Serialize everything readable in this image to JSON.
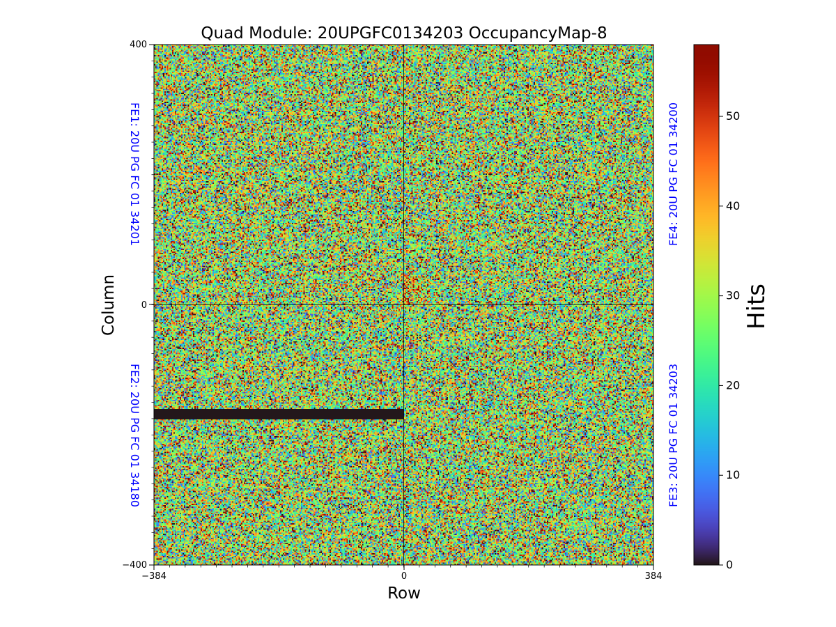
{
  "chart_data": {
    "type": "heatmap",
    "title": "Quad Module: 20UPGFC0134203 OccupancyMap-8",
    "xlabel": "Row",
    "ylabel": "Column",
    "xlim": [
      -384,
      384
    ],
    "ylim": [
      -400,
      400
    ],
    "x_ticks": [
      "−384",
      "0",
      "384"
    ],
    "y_ticks": [
      "400",
      "0",
      "−400"
    ],
    "colorbar": {
      "label": "Hits",
      "min": 0,
      "max": 58,
      "ticks": [
        "0",
        "10",
        "20",
        "30",
        "40",
        "50"
      ],
      "colormap": "turbo"
    },
    "quadrant_divider_x": 0,
    "quadrant_divider_y": 0,
    "front_ends": [
      {
        "id": "fe1",
        "label": "FE1: 20U PG FC 01 34201",
        "quadrant": "top-left"
      },
      {
        "id": "fe4",
        "label": "FE4: 20U PG FC 01 34200",
        "quadrant": "top-right"
      },
      {
        "id": "fe2",
        "label": "FE2: 20U PG FC 01 34180",
        "quadrant": "bottom-left"
      },
      {
        "id": "fe3",
        "label": "FE3: 20U PG FC 01 34203",
        "quadrant": "bottom-right"
      }
    ],
    "fe_label_color": "#0000ff",
    "dead_band": {
      "x_from": -384,
      "x_to": 0,
      "y_from": -175,
      "y_to": -160,
      "value": 0
    },
    "hot_cluster": {
      "x_from": 0,
      "x_to": 50,
      "y_from": 0,
      "y_to": 45
    },
    "mean_hits": 28
  }
}
